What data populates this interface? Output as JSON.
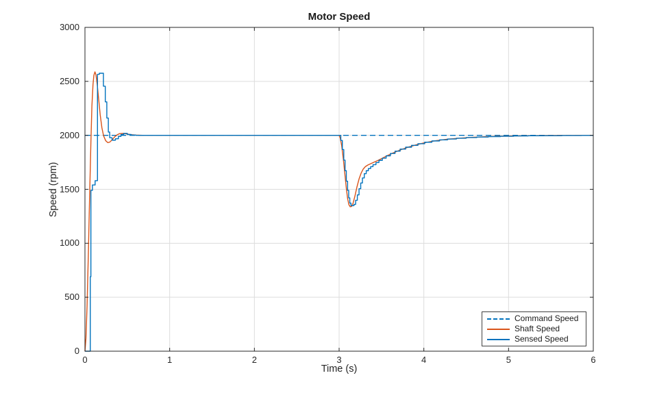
{
  "figure": {
    "background": "#ffffff"
  },
  "chart_data": {
    "type": "line",
    "title": "Motor Speed",
    "xlabel": "Time (s)",
    "ylabel": "Speed (rpm)",
    "xlim": [
      0,
      6
    ],
    "ylim": [
      0,
      3000
    ],
    "xticks": [
      0,
      1,
      2,
      3,
      4,
      5,
      6
    ],
    "yticks": [
      0,
      500,
      1000,
      1500,
      2000,
      2500,
      3000
    ],
    "grid": true,
    "legend_position": "lower-right",
    "colors": {
      "blue": "#0072BD",
      "orange": "#D95319",
      "grid": "#dcdcdc",
      "axis": "#262626",
      "text": "#262626"
    },
    "series": [
      {
        "name": "Command Speed",
        "color": "#0072BD",
        "style": "dashed",
        "width": 1.3,
        "points": [
          [
            0,
            2000
          ],
          [
            6,
            2000
          ]
        ]
      },
      {
        "name": "Shaft Speed",
        "color": "#D95319",
        "style": "solid",
        "width": 1.4,
        "points": [
          [
            0,
            0
          ],
          [
            0.012,
            120
          ],
          [
            0.025,
            420
          ],
          [
            0.04,
            900
          ],
          [
            0.055,
            1430
          ],
          [
            0.07,
            1930
          ],
          [
            0.082,
            2270
          ],
          [
            0.095,
            2470
          ],
          [
            0.105,
            2555
          ],
          [
            0.118,
            2588
          ],
          [
            0.13,
            2560
          ],
          [
            0.145,
            2470
          ],
          [
            0.16,
            2350
          ],
          [
            0.18,
            2190
          ],
          [
            0.2,
            2070
          ],
          [
            0.22,
            1995
          ],
          [
            0.245,
            1950
          ],
          [
            0.27,
            1932
          ],
          [
            0.295,
            1938
          ],
          [
            0.32,
            1958
          ],
          [
            0.35,
            1985
          ],
          [
            0.38,
            2005
          ],
          [
            0.41,
            2016
          ],
          [
            0.45,
            2018
          ],
          [
            0.49,
            2013
          ],
          [
            0.54,
            2006
          ],
          [
            0.6,
            2002
          ],
          [
            0.68,
            2000
          ],
          [
            3.0,
            2000
          ],
          [
            3.012,
            1978
          ],
          [
            3.03,
            1905
          ],
          [
            3.05,
            1778
          ],
          [
            3.068,
            1640
          ],
          [
            3.085,
            1510
          ],
          [
            3.1,
            1415
          ],
          [
            3.115,
            1358
          ],
          [
            3.13,
            1338
          ],
          [
            3.148,
            1342
          ],
          [
            3.165,
            1372
          ],
          [
            3.185,
            1432
          ],
          [
            3.21,
            1520
          ],
          [
            3.235,
            1595
          ],
          [
            3.26,
            1650
          ],
          [
            3.285,
            1688
          ],
          [
            3.31,
            1710
          ],
          [
            3.34,
            1725
          ],
          [
            3.375,
            1738
          ],
          [
            3.415,
            1752
          ],
          [
            3.46,
            1768
          ],
          [
            3.51,
            1788
          ],
          [
            3.57,
            1812
          ],
          [
            3.64,
            1838
          ],
          [
            3.72,
            1864
          ],
          [
            3.81,
            1889
          ],
          [
            3.91,
            1912
          ],
          [
            4.02,
            1933
          ],
          [
            4.14,
            1950
          ],
          [
            4.27,
            1963
          ],
          [
            4.41,
            1973
          ],
          [
            4.56,
            1981
          ],
          [
            4.72,
            1987
          ],
          [
            4.89,
            1991
          ],
          [
            5.07,
            1994
          ],
          [
            5.26,
            1996
          ],
          [
            5.46,
            1998
          ],
          [
            5.67,
            1999
          ],
          [
            6.0,
            2000
          ]
        ]
      },
      {
        "name": "Sensed Speed",
        "color": "#0072BD",
        "style": "solid",
        "width": 1.4,
        "points": [
          [
            0,
            0
          ],
          [
            0.063,
            0
          ],
          [
            0.063,
            690
          ],
          [
            0.07,
            690
          ],
          [
            0.07,
            1490
          ],
          [
            0.088,
            1490
          ],
          [
            0.088,
            1540
          ],
          [
            0.12,
            1540
          ],
          [
            0.12,
            1580
          ],
          [
            0.148,
            1580
          ],
          [
            0.148,
            2565
          ],
          [
            0.17,
            2565
          ],
          [
            0.17,
            2575
          ],
          [
            0.218,
            2575
          ],
          [
            0.218,
            2455
          ],
          [
            0.24,
            2455
          ],
          [
            0.24,
            2310
          ],
          [
            0.258,
            2310
          ],
          [
            0.258,
            2160
          ],
          [
            0.276,
            2160
          ],
          [
            0.276,
            2030
          ],
          [
            0.292,
            2030
          ],
          [
            0.292,
            1978
          ],
          [
            0.32,
            1978
          ],
          [
            0.32,
            1955
          ],
          [
            0.36,
            1955
          ],
          [
            0.36,
            1968
          ],
          [
            0.395,
            1968
          ],
          [
            0.395,
            1990
          ],
          [
            0.425,
            1990
          ],
          [
            0.425,
            2008
          ],
          [
            0.458,
            2008
          ],
          [
            0.458,
            2018
          ],
          [
            0.5,
            2018
          ],
          [
            0.5,
            2008
          ],
          [
            0.545,
            2008
          ],
          [
            0.545,
            2002
          ],
          [
            0.6,
            2002
          ],
          [
            0.6,
            2000
          ],
          [
            3.0,
            2000
          ],
          [
            3.02,
            2000
          ],
          [
            3.02,
            1952
          ],
          [
            3.038,
            1952
          ],
          [
            3.038,
            1868
          ],
          [
            3.055,
            1868
          ],
          [
            3.055,
            1770
          ],
          [
            3.07,
            1770
          ],
          [
            3.07,
            1672
          ],
          [
            3.085,
            1672
          ],
          [
            3.085,
            1575
          ],
          [
            3.1,
            1575
          ],
          [
            3.1,
            1490
          ],
          [
            3.113,
            1490
          ],
          [
            3.113,
            1420
          ],
          [
            3.126,
            1420
          ],
          [
            3.126,
            1372
          ],
          [
            3.14,
            1372
          ],
          [
            3.14,
            1348
          ],
          [
            3.175,
            1348
          ],
          [
            3.175,
            1360
          ],
          [
            3.195,
            1360
          ],
          [
            3.195,
            1398
          ],
          [
            3.215,
            1398
          ],
          [
            3.215,
            1448
          ],
          [
            3.235,
            1448
          ],
          [
            3.235,
            1505
          ],
          [
            3.255,
            1505
          ],
          [
            3.255,
            1558
          ],
          [
            3.275,
            1558
          ],
          [
            3.275,
            1605
          ],
          [
            3.297,
            1605
          ],
          [
            3.297,
            1645
          ],
          [
            3.32,
            1645
          ],
          [
            3.32,
            1672
          ],
          [
            3.345,
            1672
          ],
          [
            3.345,
            1692
          ],
          [
            3.372,
            1692
          ],
          [
            3.372,
            1710
          ],
          [
            3.4,
            1710
          ],
          [
            3.4,
            1728
          ],
          [
            3.435,
            1728
          ],
          [
            3.435,
            1748
          ],
          [
            3.47,
            1748
          ],
          [
            3.47,
            1768
          ],
          [
            3.51,
            1768
          ],
          [
            3.51,
            1788
          ],
          [
            3.555,
            1788
          ],
          [
            3.555,
            1810
          ],
          [
            3.605,
            1810
          ],
          [
            3.605,
            1832
          ],
          [
            3.66,
            1832
          ],
          [
            3.66,
            1853
          ],
          [
            3.72,
            1853
          ],
          [
            3.72,
            1872
          ],
          [
            3.785,
            1872
          ],
          [
            3.785,
            1890
          ],
          [
            3.855,
            1890
          ],
          [
            3.855,
            1907
          ],
          [
            3.93,
            1907
          ],
          [
            3.93,
            1922
          ],
          [
            4.01,
            1922
          ],
          [
            4.01,
            1936
          ],
          [
            4.095,
            1936
          ],
          [
            4.095,
            1948
          ],
          [
            4.185,
            1948
          ],
          [
            4.185,
            1958
          ],
          [
            4.28,
            1958
          ],
          [
            4.28,
            1966
          ],
          [
            4.385,
            1966
          ],
          [
            4.385,
            1973
          ],
          [
            4.5,
            1973
          ],
          [
            4.5,
            1979
          ],
          [
            4.625,
            1979
          ],
          [
            4.625,
            1984
          ],
          [
            4.76,
            1984
          ],
          [
            4.76,
            1988
          ],
          [
            4.905,
            1988
          ],
          [
            4.905,
            1991
          ],
          [
            5.06,
            1991
          ],
          [
            5.06,
            1994
          ],
          [
            5.23,
            1994
          ],
          [
            5.23,
            1996
          ],
          [
            5.42,
            1996
          ],
          [
            5.42,
            1997
          ],
          [
            5.63,
            1997
          ],
          [
            5.63,
            1998
          ],
          [
            5.86,
            1998
          ],
          [
            5.86,
            1999
          ],
          [
            6.0,
            1999
          ]
        ]
      }
    ]
  }
}
